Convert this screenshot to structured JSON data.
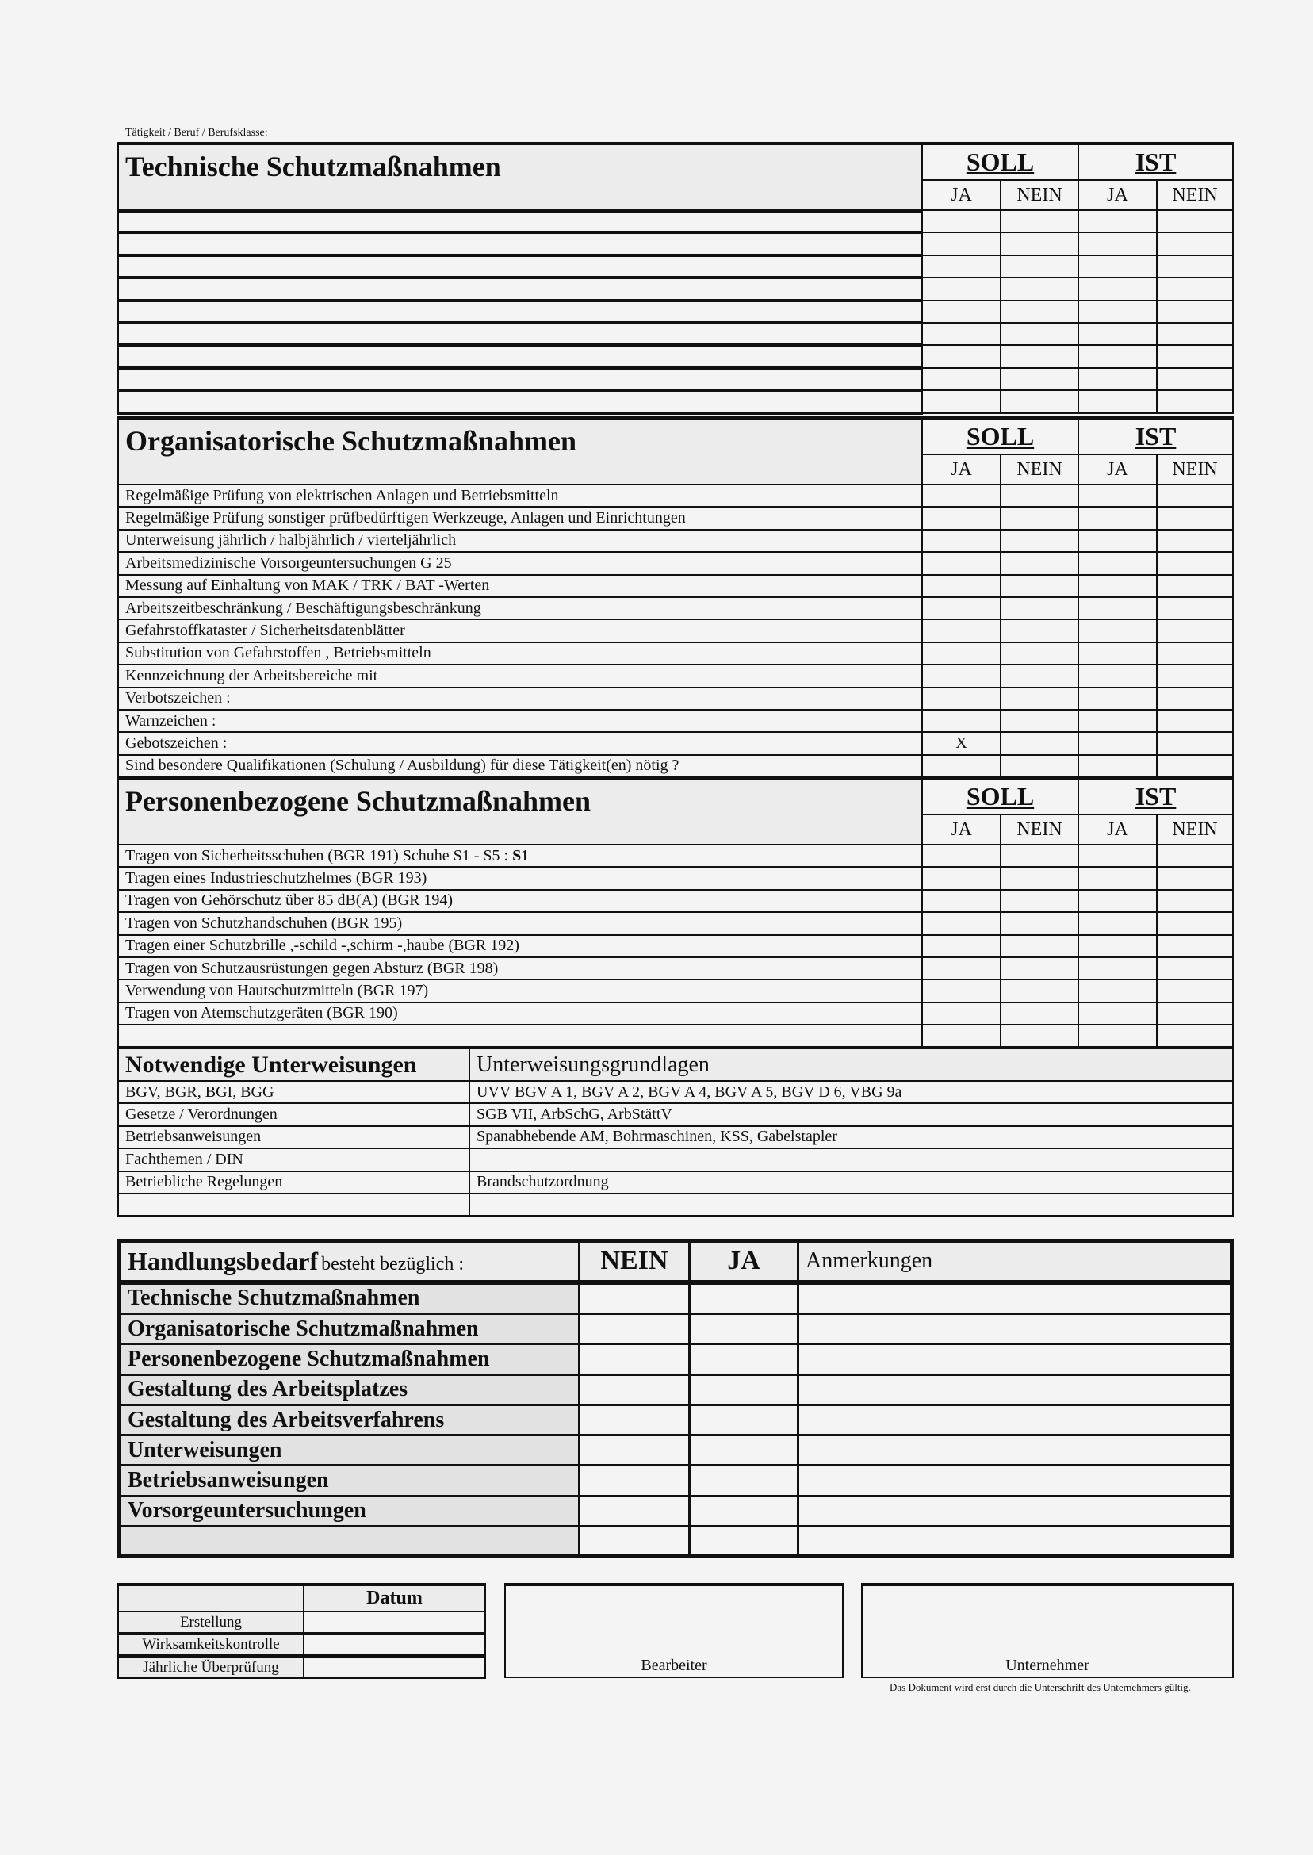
{
  "top_label": "Tätigkeit / Beruf / Berufsklasse:",
  "soll_ist": {
    "soll": "SOLL",
    "ist": "IST",
    "ja": "JA",
    "nein": "NEIN"
  },
  "technische": {
    "title": "Technische Schutzmaßnahmen",
    "rows": [
      "",
      "",
      "",
      "",
      "",
      "",
      "",
      "",
      ""
    ]
  },
  "organisatorische": {
    "title": "Organisatorische Schutzmaßnahmen",
    "rows": [
      {
        "label": "Regelmäßige Prüfung von  elektrischen Anlagen und Betriebsmitteln",
        "soll_ja": ""
      },
      {
        "label": "Regelmäßige Prüfung sonstiger prüfbedürftigen Werkzeuge, Anlagen und Einrichtungen",
        "soll_ja": ""
      },
      {
        "label": "Unterweisung   jährlich / halbjährlich / vierteljährlich",
        "soll_ja": ""
      },
      {
        "label": "Arbeitsmedizinische Vorsorgeuntersuchungen  G 25",
        "soll_ja": ""
      },
      {
        "label": "Messung auf Einhaltung von MAK / TRK / BAT -Werten",
        "soll_ja": ""
      },
      {
        "label": "Arbeitszeitbeschränkung / Beschäftigungsbeschränkung",
        "soll_ja": ""
      },
      {
        "label": "Gefahrstoffkataster / Sicherheitsdatenblätter",
        "soll_ja": ""
      },
      {
        "label": "Substitution von Gefahrstoffen , Betriebsmitteln",
        "soll_ja": ""
      },
      {
        "label": "Kennzeichnung der Arbeitsbereiche mit",
        "soll_ja": ""
      },
      {
        "label": "Verbotszeichen   :",
        "soll_ja": ""
      },
      {
        "label": "Warnzeichen      :",
        "soll_ja": ""
      },
      {
        "label": "Gebotszeichen    :",
        "soll_ja": "X"
      },
      {
        "label": "Sind besondere Qualifikationen (Schulung / Ausbildung) für diese Tätigkeit(en) nötig ?",
        "soll_ja": ""
      }
    ]
  },
  "personenbezogene": {
    "title": "Personenbezogene Schutzmaßnahmen",
    "rows": [
      "Tragen von Sicherheitsschuhen (BGR 191)  Schuhe S1 - S5 : S1",
      "Tragen eines Industrieschutzhelmes (BGR 193)",
      "Tragen von Gehörschutz über 85 dB(A) (BGR 194)",
      "Tragen von Schutzhandschuhen (BGR 195)",
      "Tragen einer Schutzbrille ,-schild -,schirm -,haube (BGR 192)",
      "Tragen von  Schutzausrüstungen gegen Absturz (BGR 198)",
      "Verwendung  von Hautschutzmitteln (BGR 197)",
      "Tragen von Atemschutzgeräten (BGR 190)",
      ""
    ]
  },
  "unterweisungen": {
    "title": "Notwendige Unterweisungen",
    "col2": "Unterweisungsgrundlagen",
    "rows": [
      [
        "BGV, BGR, BGI, BGG",
        "UVV BGV A 1, BGV A 2, BGV A 4, BGV A 5, BGV D 6, VBG 9a"
      ],
      [
        "Gesetze / Verordnungen",
        "SGB VII, ArbSchG, ArbStättV"
      ],
      [
        "Betriebsanweisungen",
        "Spanabhebende AM, Bohrmaschinen, KSS, Gabelstapler"
      ],
      [
        "Fachthemen / DIN",
        ""
      ],
      [
        "Betriebliche Regelungen",
        "Brandschutzordnung"
      ],
      [
        "",
        ""
      ]
    ]
  },
  "handlungsbedarf": {
    "title": "Handlungsbedarf",
    "title_suffix": "besteht bezüglich :",
    "nein": "NEIN",
    "ja": "JA",
    "anmerkungen": "Anmerkungen",
    "rows": [
      "Technische Schutzmaßnahmen",
      "Organisatorische Schutzmaßnahmen",
      "Personenbezogene Schutzmaßnahmen",
      "Gestaltung des Arbeitsplatzes",
      "Gestaltung des Arbeitsverfahrens",
      "Unterweisungen",
      "Betriebsanweisungen",
      "Vorsorgeuntersuchungen",
      ""
    ]
  },
  "datum": {
    "header": "Datum",
    "rows": [
      "Erstellung",
      "Wirksamkeitskontrolle",
      "Jährliche Überprüfung"
    ]
  },
  "signatures": {
    "bearbeiter": "Bearbeiter",
    "unternehmer": "Unternehmer",
    "note": "Das Dokument wird erst durch die Unterschrift des Unternehmers gültig."
  }
}
